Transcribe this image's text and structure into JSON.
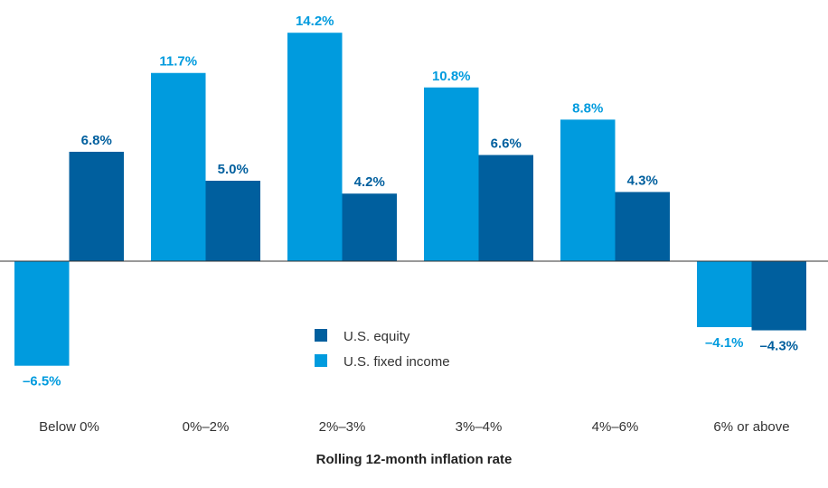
{
  "chart_data": {
    "type": "bar",
    "title": "",
    "xlabel": "Rolling 12-month inflation rate",
    "ylabel": "",
    "ylim": [
      -6.9,
      14.8
    ],
    "grid": false,
    "legend_position": "center",
    "categories": [
      "Below 0%",
      "0%–2%",
      "2%–3%",
      "3%–4%",
      "4%–6%",
      "6% or above"
    ],
    "series": [
      {
        "name": "U.S. fixed income",
        "color": "#009bde",
        "values": [
          -6.5,
          11.7,
          14.2,
          10.8,
          8.8,
          -4.1
        ],
        "labels": [
          "–6.5%",
          "11.7%",
          "14.2%",
          "10.8%",
          "8.8%",
          "–4.1%"
        ]
      },
      {
        "name": "U.S. equity",
        "color": "#005f9e",
        "values": [
          6.8,
          5.0,
          4.2,
          6.6,
          4.3,
          -4.3
        ],
        "labels": [
          "6.8%",
          "5.0%",
          "4.2%",
          "6.6%",
          "4.3%",
          "–4.3%"
        ]
      }
    ]
  },
  "legend": {
    "items": [
      {
        "label": "U.S. equity",
        "color": "#005f9e"
      },
      {
        "label": "U.S. fixed income",
        "color": "#009bde"
      }
    ]
  }
}
